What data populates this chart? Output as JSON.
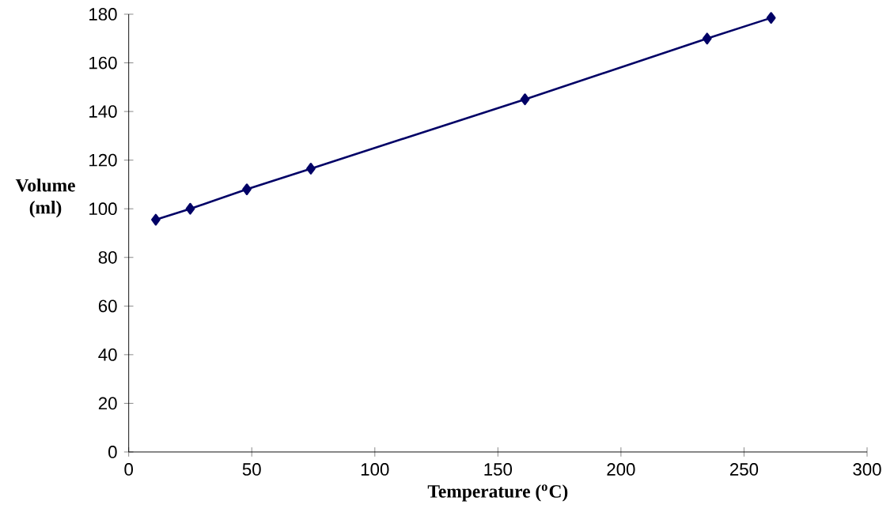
{
  "chart_data": {
    "type": "line",
    "xlabel": "Temperature ($^{o}$C)",
    "ylabel": "Volume (ml)",
    "x": [
      11,
      25,
      48,
      74,
      161,
      235,
      261
    ],
    "series": [
      {
        "color": "#000066",
        "values": [
          95.5,
          100,
          108,
          116.5,
          145,
          170,
          178.5
        ]
      }
    ],
    "xlim": [
      0,
      300
    ],
    "ylim": [
      0,
      180
    ],
    "xticks": [
      0,
      50,
      100,
      150,
      200,
      250,
      300
    ],
    "yticks": [
      0,
      20,
      40,
      60,
      80,
      100,
      120,
      140,
      160,
      180
    ],
    "marker": "diamond",
    "line_style": "solid",
    "grid": false
  }
}
